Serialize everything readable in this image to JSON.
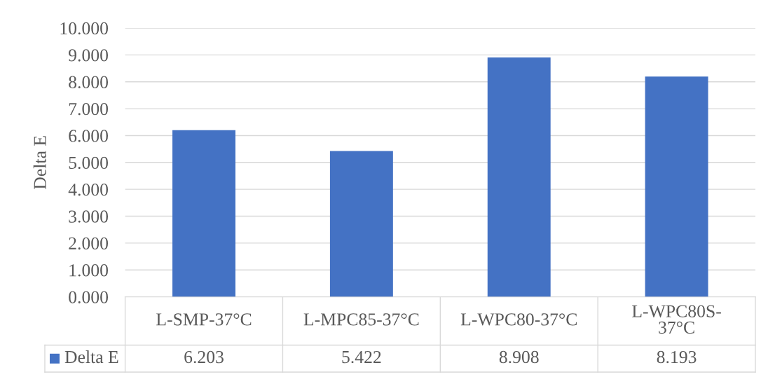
{
  "chart_data": {
    "type": "bar",
    "ylabel": "Delta E",
    "categories": [
      "L-SMP-37°C",
      "L-MPC85-37°C",
      "L-WPC80-37°C",
      "L-WPC80S-37°C"
    ],
    "series": [
      {
        "name": "Delta E",
        "color": "#4472c4",
        "values": [
          6.203,
          5.422,
          8.908,
          8.193
        ]
      }
    ],
    "ylim": [
      0,
      10
    ],
    "yticks": [
      {
        "value": 0,
        "label": "0.000"
      },
      {
        "value": 1,
        "label": "1.000"
      },
      {
        "value": 2,
        "label": "2.000"
      },
      {
        "value": 3,
        "label": "3.000"
      },
      {
        "value": 4,
        "label": "4.000"
      },
      {
        "value": 5,
        "label": "5.000"
      },
      {
        "value": 6,
        "label": "6.000"
      },
      {
        "value": 7,
        "label": "7.000"
      },
      {
        "value": 8,
        "label": "8.000"
      },
      {
        "value": 9,
        "label": "9.000"
      },
      {
        "value": 10,
        "label": "10.000"
      }
    ],
    "grid": "y",
    "data_labels": true,
    "legend": "bottom"
  }
}
